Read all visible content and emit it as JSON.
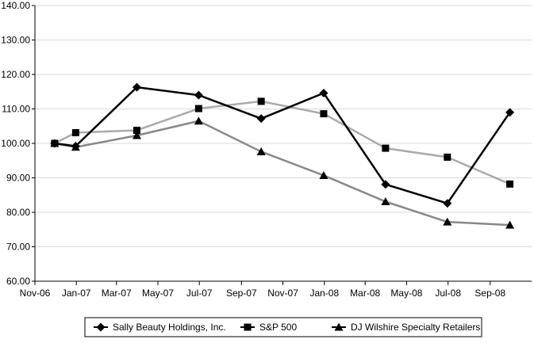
{
  "chart_data": {
    "type": "line",
    "title": "",
    "xlabel": "",
    "ylabel": "",
    "ylim": [
      60,
      140
    ],
    "yticks": [
      60,
      70,
      80,
      90,
      100,
      110,
      120,
      130,
      140
    ],
    "ytick_labels": [
      "60.00",
      "70.00",
      "80.00",
      "90.00",
      "100.00",
      "110.00",
      "120.00",
      "130.00",
      "140.00"
    ],
    "xticks": [
      "Nov-06",
      "Jan-07",
      "Mar-07",
      "May-07",
      "Jul-07",
      "Sep-07",
      "Nov-07",
      "Jan-08",
      "Mar-08",
      "May-08",
      "Jul-08",
      "Sep-08"
    ],
    "grid": "horizontal",
    "legend": "bottom",
    "series": [
      {
        "name": "Sally Beauty Holdings, Inc.",
        "marker": "diamond",
        "color": "#000000",
        "x": [
          "2006-11-30",
          "2006-12-31",
          "2007-03-31",
          "2007-06-30",
          "2007-09-30",
          "2007-12-31",
          "2008-03-31",
          "2008-06-30",
          "2008-09-30"
        ],
        "values": [
          100.0,
          99.2,
          116.3,
          114.0,
          107.2,
          114.6,
          88.1,
          82.6,
          109.0
        ]
      },
      {
        "name": "S&P 500",
        "marker": "square",
        "color": "#aaaaaa",
        "x": [
          "2006-11-30",
          "2006-12-31",
          "2007-03-31",
          "2007-06-30",
          "2007-09-30",
          "2007-12-31",
          "2008-03-31",
          "2008-06-30",
          "2008-09-30"
        ],
        "values": [
          100.0,
          103.1,
          103.8,
          110.1,
          112.2,
          108.6,
          98.6,
          96.0,
          88.2
        ]
      },
      {
        "name": "DJ Wilshire Specialty Retailers",
        "marker": "triangle",
        "color": "#888888",
        "x": [
          "2006-11-30",
          "2006-12-31",
          "2007-03-31",
          "2007-06-30",
          "2007-09-30",
          "2007-12-31",
          "2008-03-31",
          "2008-06-30",
          "2008-09-30"
        ],
        "values": [
          100.0,
          98.9,
          102.3,
          106.5,
          97.6,
          90.7,
          83.1,
          77.2,
          76.3
        ]
      }
    ]
  }
}
